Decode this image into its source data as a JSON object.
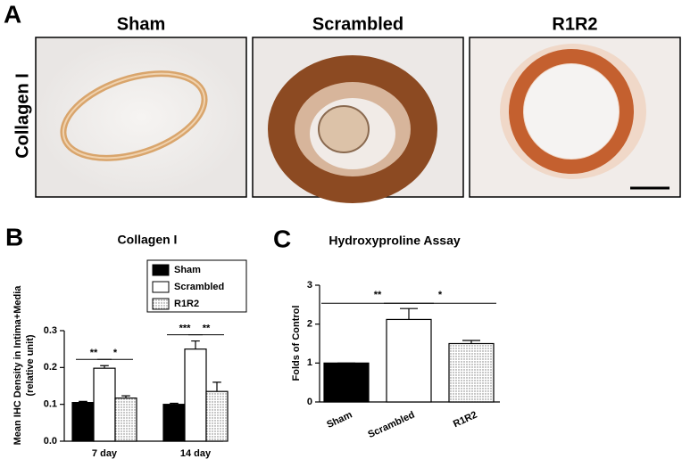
{
  "panel_a": {
    "label": "A",
    "columns": [
      "Sham",
      "Scrambled",
      "R1R2"
    ],
    "row_label": "Collagen I"
  },
  "chart_data": [
    {
      "type": "bar",
      "panel_label": "B",
      "title": "Collagen I",
      "y_label": [
        "Mean IHC Density in Intima+Media",
        "(relative unit)"
      ],
      "categories": [
        "7 day",
        "14 day"
      ],
      "series": [
        {
          "name": "Sham",
          "color": "#000000",
          "patterned": false,
          "values": [
            0.105,
            0.1
          ],
          "errors": [
            0.003,
            0.003
          ]
        },
        {
          "name": "Scrambled",
          "color": "#ffffff",
          "patterned": false,
          "values": [
            0.198,
            0.25
          ],
          "errors": [
            0.007,
            0.022
          ]
        },
        {
          "name": "R1R2",
          "color": "#ffffff",
          "patterned": true,
          "values": [
            0.117,
            0.135
          ],
          "errors": [
            0.006,
            0.025
          ]
        }
      ],
      "ylim": [
        0,
        0.3
      ],
      "yticks": [
        {
          "value": 0,
          "label": "0.0"
        },
        0.1,
        0.2,
        0.3
      ],
      "significance": [
        {
          "text": "**",
          "category": 0,
          "series": [
            0,
            1
          ]
        },
        {
          "text": "*",
          "category": 0,
          "series": [
            1,
            2
          ]
        },
        {
          "text": "***",
          "category": 1,
          "series": [
            0,
            1
          ]
        },
        {
          "text": "**",
          "category": 1,
          "series": [
            1,
            2
          ]
        }
      ]
    },
    {
      "type": "bar",
      "panel_label": "C",
      "title": "Hydroxyproline Assay",
      "y_label": [
        "Folds of Control"
      ],
      "categories": [
        "Sham",
        "Scrambled",
        "R1R2"
      ],
      "values": [
        1.0,
        2.12,
        1.5
      ],
      "errors": [
        0,
        0.28,
        0.08
      ],
      "colors": [
        "#000000",
        "#ffffff",
        "#ffffff"
      ],
      "patterned": [
        false,
        false,
        true
      ],
      "ylim": [
        0,
        3
      ],
      "yticks": [
        0,
        1,
        2,
        3
      ],
      "significance": [
        {
          "text": "**",
          "bars": [
            0,
            1
          ]
        },
        {
          "text": "*",
          "bars": [
            1,
            2
          ]
        }
      ]
    }
  ]
}
